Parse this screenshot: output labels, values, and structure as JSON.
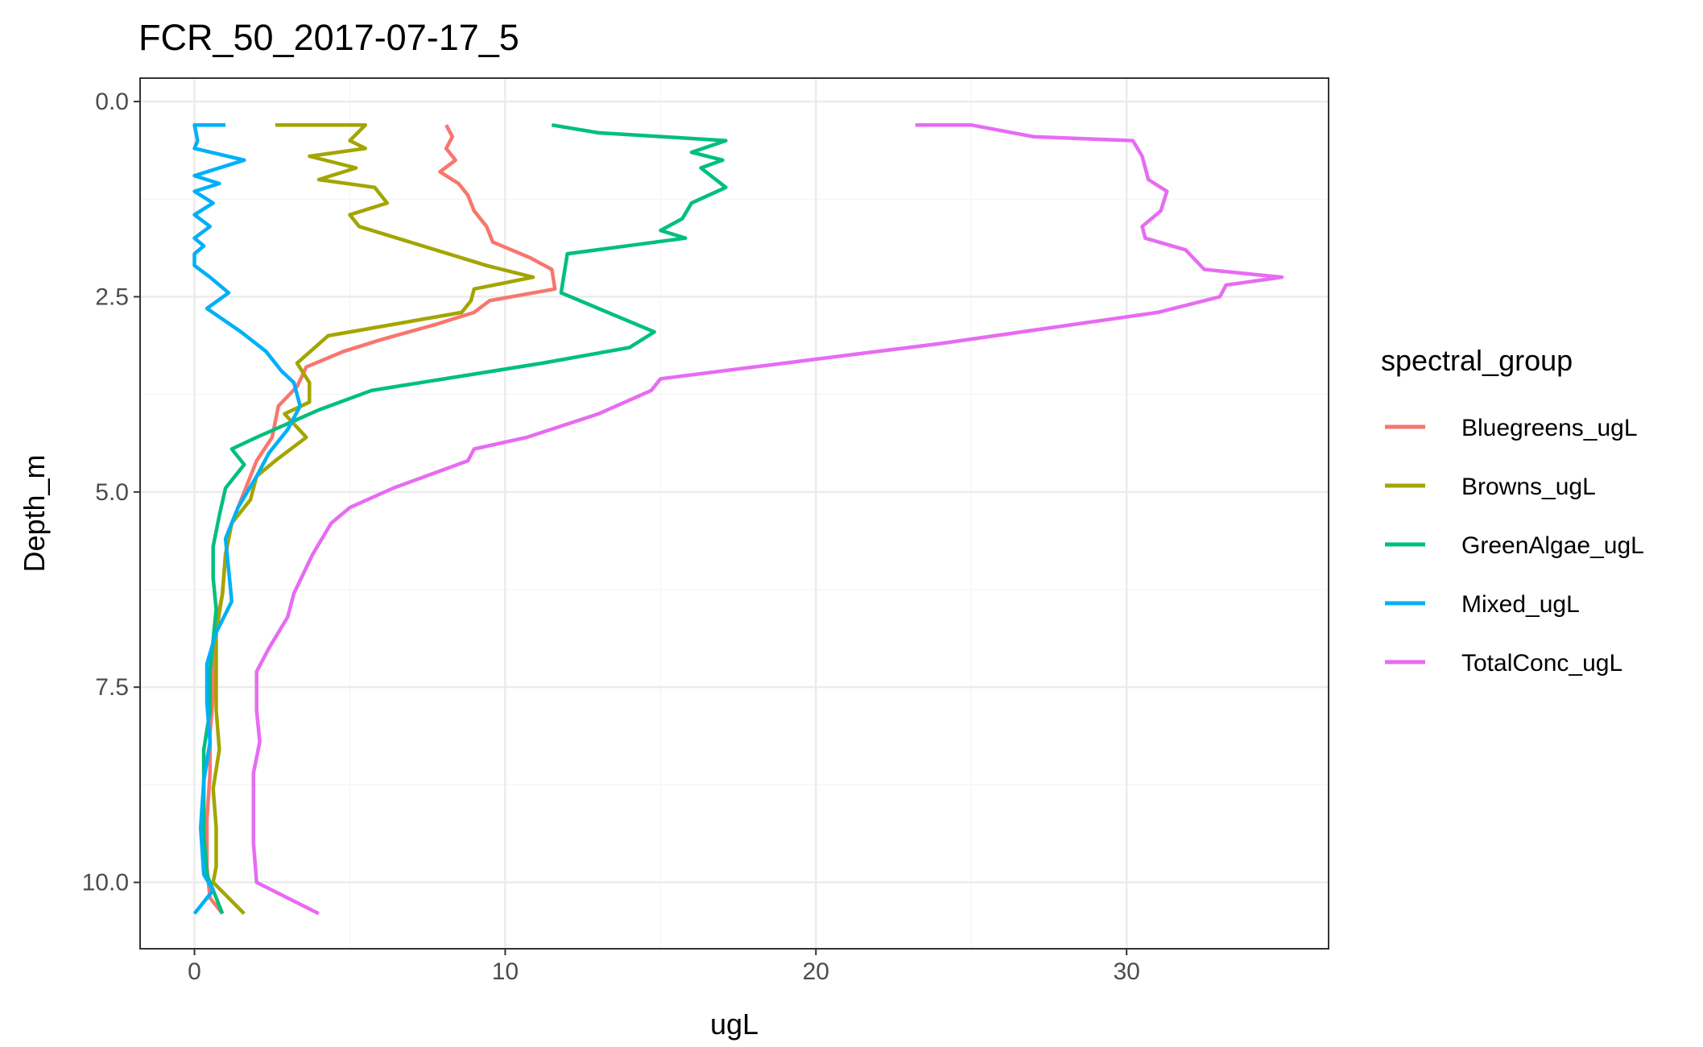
{
  "chart_data": {
    "type": "line",
    "title": "FCR_50_2017-07-17_5",
    "xlabel": "ugL",
    "ylabel": "Depth_m",
    "xlim": [
      -1.75,
      36.5
    ],
    "ylim": [
      10.85,
      -0.3
    ],
    "y_reversed": true,
    "x_ticks": [
      0,
      10,
      20,
      30
    ],
    "x_tick_labels": [
      "0",
      "10",
      "20",
      "30"
    ],
    "y_ticks": [
      0,
      2.5,
      5,
      7.5,
      10
    ],
    "y_tick_labels": [
      "0.0",
      "2.5",
      "5.0",
      "7.5",
      "10.0"
    ],
    "grid": true,
    "legend": {
      "title": "spectral_group",
      "position": "right"
    },
    "series": [
      {
        "name": "Bluegreens_ugL",
        "color": "#F8766D",
        "points": [
          [
            8.1,
            0.3
          ],
          [
            8.3,
            0.45
          ],
          [
            8.1,
            0.6
          ],
          [
            8.4,
            0.75
          ],
          [
            7.9,
            0.9
          ],
          [
            8.5,
            1.05
          ],
          [
            8.8,
            1.2
          ],
          [
            9.0,
            1.4
          ],
          [
            9.4,
            1.6
          ],
          [
            9.6,
            1.8
          ],
          [
            10.8,
            2.0
          ],
          [
            11.5,
            2.15
          ],
          [
            11.6,
            2.4
          ],
          [
            9.5,
            2.55
          ],
          [
            9.0,
            2.7
          ],
          [
            7.8,
            2.85
          ],
          [
            6.0,
            3.05
          ],
          [
            4.8,
            3.2
          ],
          [
            3.6,
            3.4
          ],
          [
            3.3,
            3.65
          ],
          [
            2.7,
            3.9
          ],
          [
            2.5,
            4.3
          ],
          [
            2.0,
            4.6
          ],
          [
            1.6,
            5.0
          ],
          [
            1.2,
            5.4
          ],
          [
            1.0,
            5.8
          ],
          [
            0.9,
            6.3
          ],
          [
            0.7,
            6.7
          ],
          [
            0.6,
            7.2
          ],
          [
            0.6,
            7.6
          ],
          [
            0.5,
            8.1
          ],
          [
            0.5,
            8.6
          ],
          [
            0.4,
            9.2
          ],
          [
            0.4,
            9.8
          ],
          [
            0.5,
            10.2
          ],
          [
            0.9,
            10.4
          ]
        ]
      },
      {
        "name": "Browns_ugL",
        "color": "#A3A500",
        "points": [
          [
            2.6,
            0.3
          ],
          [
            5.5,
            0.3
          ],
          [
            5.0,
            0.5
          ],
          [
            5.5,
            0.6
          ],
          [
            3.7,
            0.7
          ],
          [
            5.2,
            0.85
          ],
          [
            4.0,
            1.0
          ],
          [
            5.8,
            1.1
          ],
          [
            6.2,
            1.3
          ],
          [
            5.0,
            1.45
          ],
          [
            5.3,
            1.6
          ],
          [
            9.4,
            2.1
          ],
          [
            10.9,
            2.25
          ],
          [
            9.0,
            2.4
          ],
          [
            8.9,
            2.55
          ],
          [
            8.6,
            2.7
          ],
          [
            4.3,
            3.0
          ],
          [
            3.3,
            3.35
          ],
          [
            3.7,
            3.6
          ],
          [
            3.7,
            3.85
          ],
          [
            2.9,
            4.0
          ],
          [
            3.6,
            4.3
          ],
          [
            2.6,
            4.6
          ],
          [
            2.0,
            4.8
          ],
          [
            1.8,
            5.1
          ],
          [
            1.2,
            5.4
          ],
          [
            1.0,
            5.8
          ],
          [
            0.9,
            6.3
          ],
          [
            0.7,
            6.8
          ],
          [
            0.7,
            7.3
          ],
          [
            0.7,
            7.8
          ],
          [
            0.8,
            8.3
          ],
          [
            0.6,
            8.8
          ],
          [
            0.7,
            9.3
          ],
          [
            0.7,
            9.8
          ],
          [
            0.6,
            10.0
          ],
          [
            1.6,
            10.4
          ]
        ]
      },
      {
        "name": "GreenAlgae_ugL",
        "color": "#00BF7D",
        "points": [
          [
            11.5,
            0.3
          ],
          [
            13.0,
            0.4
          ],
          [
            17.1,
            0.5
          ],
          [
            16.0,
            0.65
          ],
          [
            17.0,
            0.75
          ],
          [
            16.3,
            0.85
          ],
          [
            17.1,
            1.1
          ],
          [
            16.0,
            1.3
          ],
          [
            15.7,
            1.5
          ],
          [
            15.0,
            1.65
          ],
          [
            15.8,
            1.75
          ],
          [
            12.0,
            1.95
          ],
          [
            11.9,
            2.2
          ],
          [
            11.8,
            2.45
          ],
          [
            13.0,
            2.65
          ],
          [
            14.8,
            2.95
          ],
          [
            14.0,
            3.15
          ],
          [
            11.2,
            3.35
          ],
          [
            5.7,
            3.7
          ],
          [
            4.0,
            3.95
          ],
          [
            2.0,
            4.3
          ],
          [
            1.2,
            4.45
          ],
          [
            1.6,
            4.65
          ],
          [
            1.0,
            4.95
          ],
          [
            0.8,
            5.3
          ],
          [
            0.6,
            5.7
          ],
          [
            0.6,
            6.1
          ],
          [
            0.7,
            6.5
          ],
          [
            0.6,
            6.9
          ],
          [
            0.5,
            7.3
          ],
          [
            0.5,
            7.8
          ],
          [
            0.3,
            8.3
          ],
          [
            0.3,
            8.9
          ],
          [
            0.3,
            9.4
          ],
          [
            0.4,
            9.9
          ],
          [
            0.9,
            10.4
          ]
        ]
      },
      {
        "name": "Mixed_ugL",
        "color": "#00B0F6",
        "points": [
          [
            1.0,
            0.3
          ],
          [
            0.0,
            0.3
          ],
          [
            0.1,
            0.5
          ],
          [
            0.0,
            0.6
          ],
          [
            1.6,
            0.75
          ],
          [
            0.0,
            0.95
          ],
          [
            0.8,
            1.05
          ],
          [
            0.0,
            1.15
          ],
          [
            0.6,
            1.3
          ],
          [
            0.0,
            1.45
          ],
          [
            0.5,
            1.6
          ],
          [
            0.0,
            1.75
          ],
          [
            0.3,
            1.85
          ],
          [
            0.0,
            1.95
          ],
          [
            0.0,
            2.1
          ],
          [
            0.5,
            2.25
          ],
          [
            1.1,
            2.45
          ],
          [
            0.4,
            2.65
          ],
          [
            1.5,
            2.95
          ],
          [
            2.3,
            3.2
          ],
          [
            2.8,
            3.45
          ],
          [
            3.2,
            3.6
          ],
          [
            3.4,
            3.9
          ],
          [
            3.0,
            4.2
          ],
          [
            2.4,
            4.5
          ],
          [
            2.0,
            4.8
          ],
          [
            1.4,
            5.2
          ],
          [
            1.0,
            5.6
          ],
          [
            1.1,
            6.0
          ],
          [
            1.2,
            6.4
          ],
          [
            0.7,
            6.8
          ],
          [
            0.4,
            7.2
          ],
          [
            0.4,
            7.7
          ],
          [
            0.5,
            8.2
          ],
          [
            0.3,
            8.7
          ],
          [
            0.2,
            9.3
          ],
          [
            0.3,
            9.9
          ],
          [
            0.6,
            10.1
          ],
          [
            0.0,
            10.4
          ]
        ]
      },
      {
        "name": "TotalConc_ugL",
        "color": "#E76BF3",
        "points": [
          [
            23.2,
            0.3
          ],
          [
            25.0,
            0.3
          ],
          [
            27.0,
            0.45
          ],
          [
            30.2,
            0.5
          ],
          [
            30.5,
            0.7
          ],
          [
            30.7,
            1.0
          ],
          [
            31.3,
            1.15
          ],
          [
            31.1,
            1.4
          ],
          [
            30.5,
            1.6
          ],
          [
            30.6,
            1.75
          ],
          [
            31.9,
            1.9
          ],
          [
            32.5,
            2.15
          ],
          [
            35.0,
            2.25
          ],
          [
            33.2,
            2.35
          ],
          [
            33.0,
            2.5
          ],
          [
            31.0,
            2.7
          ],
          [
            24.0,
            3.1
          ],
          [
            20.0,
            3.3
          ],
          [
            15.0,
            3.55
          ],
          [
            14.7,
            3.7
          ],
          [
            13.0,
            4.0
          ],
          [
            10.7,
            4.3
          ],
          [
            9.0,
            4.45
          ],
          [
            8.8,
            4.6
          ],
          [
            6.4,
            4.95
          ],
          [
            5.0,
            5.2
          ],
          [
            4.4,
            5.4
          ],
          [
            3.8,
            5.8
          ],
          [
            3.2,
            6.3
          ],
          [
            3.0,
            6.6
          ],
          [
            2.4,
            7.0
          ],
          [
            2.0,
            7.3
          ],
          [
            2.0,
            7.8
          ],
          [
            2.1,
            8.2
          ],
          [
            1.9,
            8.6
          ],
          [
            1.9,
            9.0
          ],
          [
            1.9,
            9.5
          ],
          [
            2.0,
            10.0
          ],
          [
            4.0,
            10.4
          ]
        ]
      }
    ]
  }
}
